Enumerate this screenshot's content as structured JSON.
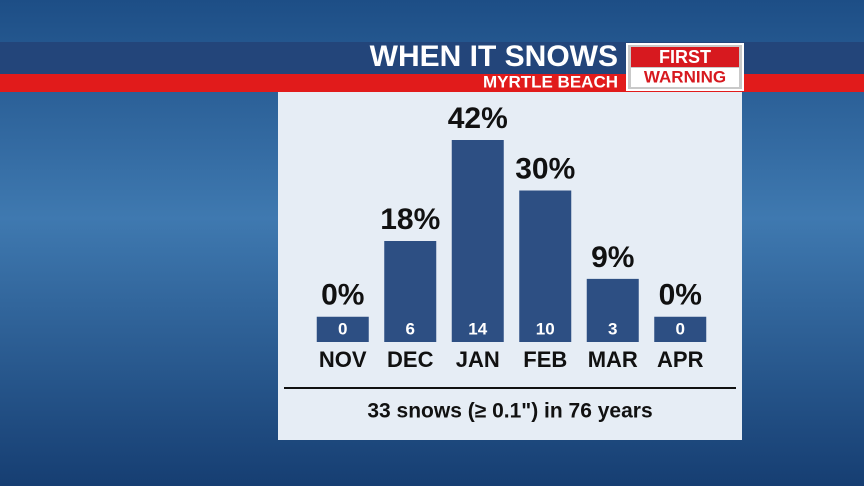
{
  "chart_data": {
    "type": "bar",
    "title": "WHEN IT SNOWS",
    "subtitle": "MYRTLE BEACH",
    "badge": [
      "FIRST",
      "WARNING"
    ],
    "categories": [
      "NOV",
      "DEC",
      "JAN",
      "FEB",
      "MAR",
      "APR"
    ],
    "values": [
      0,
      18,
      42,
      30,
      9,
      0
    ],
    "value_labels": [
      "0%",
      "18%",
      "42%",
      "30%",
      "9%",
      "0%"
    ],
    "counts": [
      0,
      6,
      14,
      10,
      3,
      0
    ],
    "color": "#2d4f83",
    "ylim": [
      -6,
      42
    ],
    "footnote": "33 snows (≥ 0.1\") in 76 years"
  }
}
